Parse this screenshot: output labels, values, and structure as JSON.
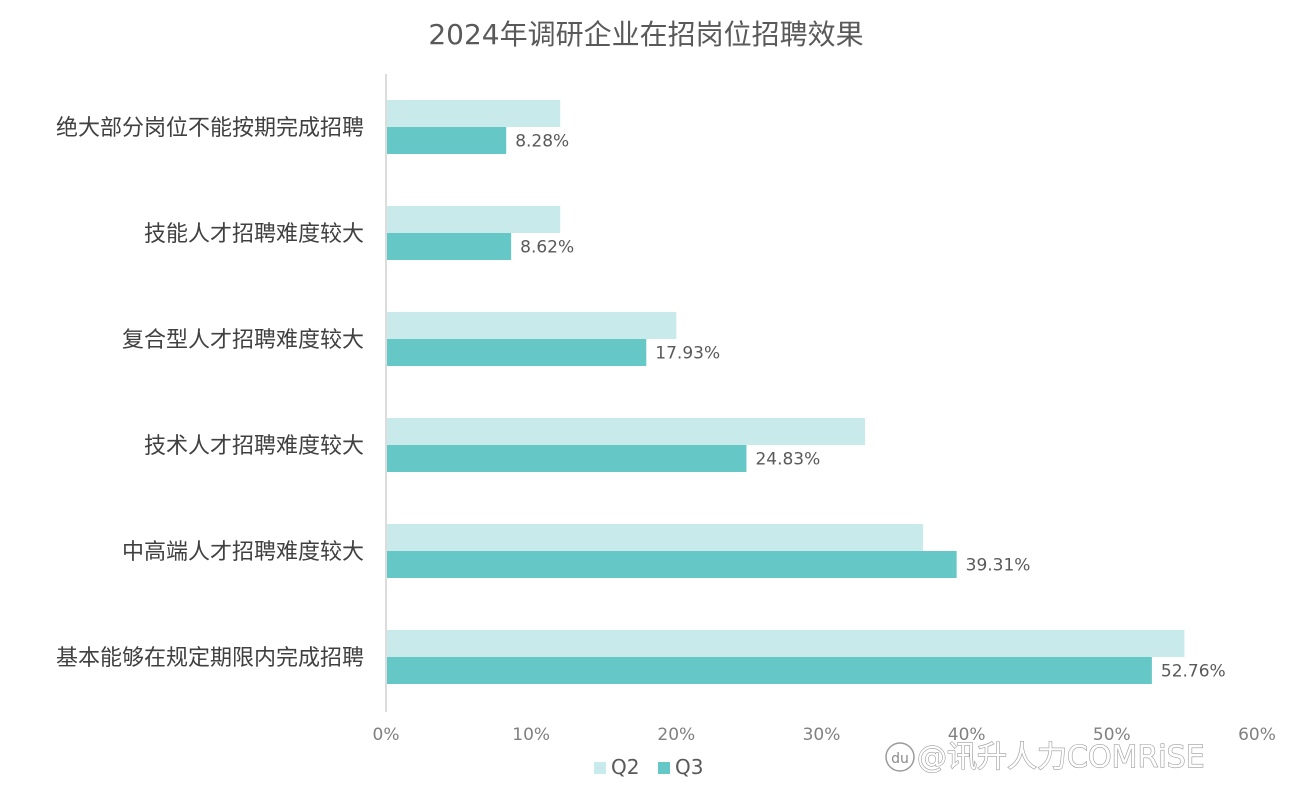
{
  "chart_data": {
    "type": "bar",
    "orientation": "horizontal",
    "title": "2024年调研企业在招岗位招聘效果",
    "categories": [
      "绝大部分岗位不能按期完成招聘",
      "技能人才招聘难度较大",
      "复合型人才招聘难度较大",
      "技术人才招聘难度较大",
      "中高端人才招聘难度较大",
      "基本能够在规定期限内完成招聘"
    ],
    "series": [
      {
        "name": "Q2",
        "color": "#C8EAEA",
        "values": [
          12.0,
          12.0,
          20.0,
          33.0,
          37.0,
          55.0
        ]
      },
      {
        "name": "Q3",
        "color": "#66C8C6",
        "values": [
          8.28,
          8.62,
          17.93,
          24.83,
          39.31,
          52.76
        ]
      }
    ],
    "data_labels": [
      "8.28%",
      "8.62%",
      "17.93%",
      "24.83%",
      "39.31%",
      "52.76%"
    ],
    "xlim": [
      0,
      60
    ],
    "xticks": [
      "0%",
      "10%",
      "20%",
      "30%",
      "40%",
      "50%",
      "60%"
    ],
    "grid": false,
    "legend": "bottom-center"
  },
  "watermark": {
    "logo": "du",
    "text": "@讯升人力COMRiSE"
  }
}
